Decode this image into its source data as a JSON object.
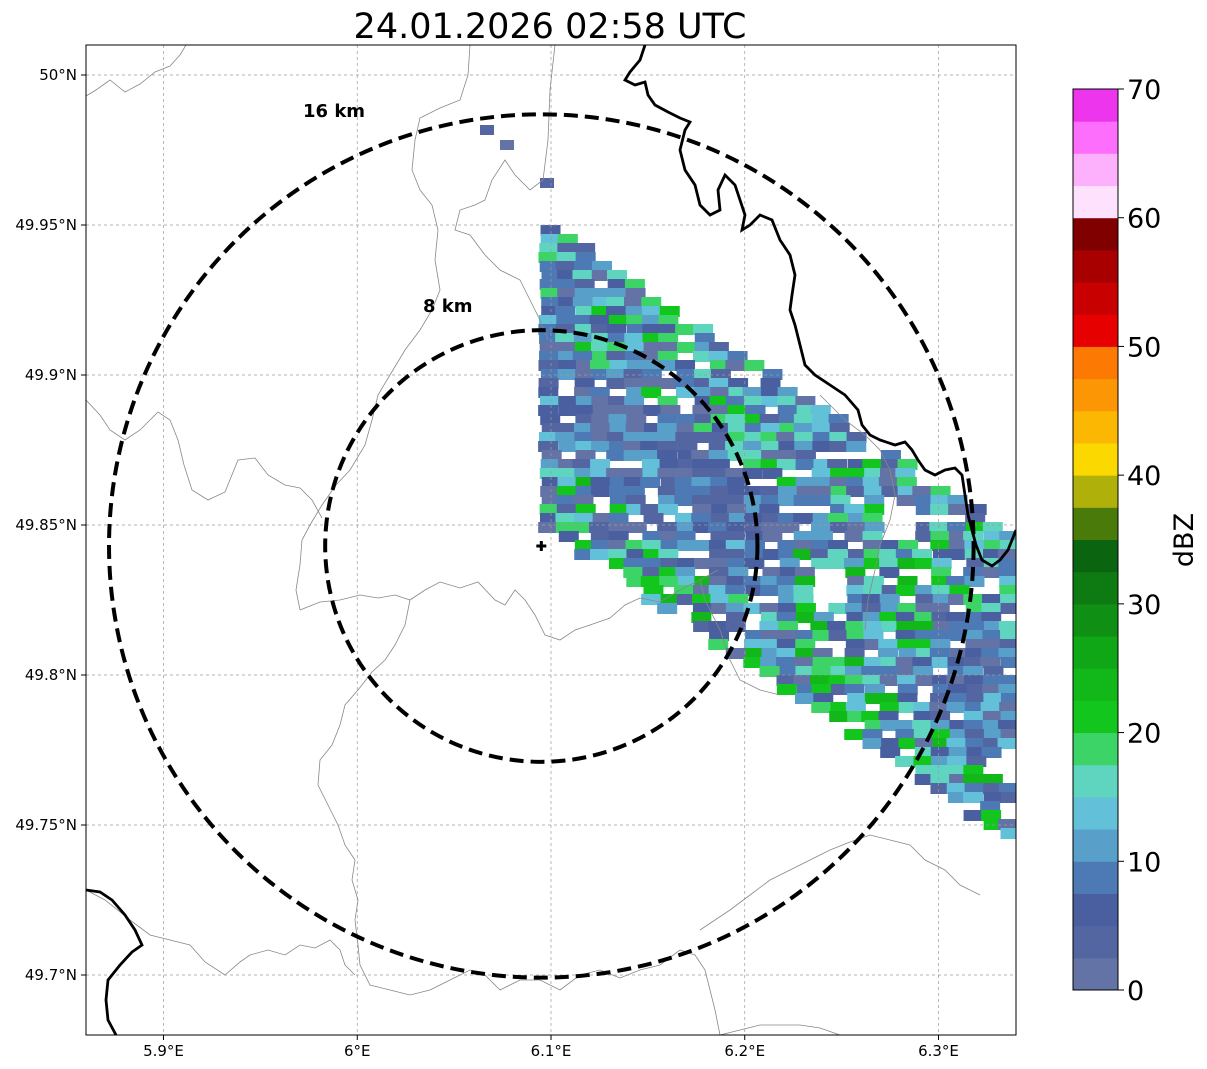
{
  "title": "24.01.2026 02:58 UTC",
  "map": {
    "lon_range": [
      5.86,
      6.34
    ],
    "lat_range": [
      49.68,
      50.01
    ],
    "lon_ticks": [
      {
        "value": 5.9,
        "label": "5.9°E"
      },
      {
        "value": 6.0,
        "label": "6°E"
      },
      {
        "value": 6.1,
        "label": "6.1°E"
      },
      {
        "value": 6.2,
        "label": "6.2°E"
      },
      {
        "value": 6.3,
        "label": "6.3°E"
      }
    ],
    "lat_ticks": [
      {
        "value": 49.7,
        "label": "49.7°N"
      },
      {
        "value": 49.75,
        "label": "49.75°N"
      },
      {
        "value": 49.8,
        "label": "49.8°N"
      },
      {
        "value": 49.85,
        "label": "49.85°N"
      },
      {
        "value": 49.9,
        "label": "49.9°N"
      },
      {
        "value": 49.95,
        "label": "49.95°N"
      },
      {
        "value": 50.0,
        "label": "50°N"
      }
    ],
    "grid": true,
    "radar_center": {
      "lon": 6.095,
      "lat": 49.843
    },
    "range_rings": [
      {
        "radius_km": 8,
        "label": "8 km"
      },
      {
        "radius_km": 16,
        "label": "16 km"
      }
    ],
    "center_marker": "plus-icon"
  },
  "colorbar": {
    "label": "dBZ",
    "vmin": 0,
    "vmax": 70,
    "placement": "right",
    "ticks": [
      {
        "value": 0,
        "label": "0"
      },
      {
        "value": 10,
        "label": "10"
      },
      {
        "value": 20,
        "label": "20"
      },
      {
        "value": 30,
        "label": "30"
      },
      {
        "value": 40,
        "label": "40"
      },
      {
        "value": 50,
        "label": "50"
      },
      {
        "value": 60,
        "label": "60"
      },
      {
        "value": 70,
        "label": "70"
      }
    ],
    "colors": [
      "#6373a6",
      "#5466a1",
      "#4a5fa0",
      "#4d7ab5",
      "#589fc9",
      "#62c0d9",
      "#5fd5c0",
      "#3dd467",
      "#12c61d",
      "#12b81a",
      "#10a717",
      "#0f9015",
      "#0d7a12",
      "#0b640f",
      "#4a7a0a",
      "#b0b00a",
      "#fcd801",
      "#fcb702",
      "#fc9604",
      "#fc7a04",
      "#e60000",
      "#c80000",
      "#a80000",
      "#800000",
      "#fde1fd",
      "#fdb1fd",
      "#fd6efd",
      "#ec35ec"
    ]
  }
}
